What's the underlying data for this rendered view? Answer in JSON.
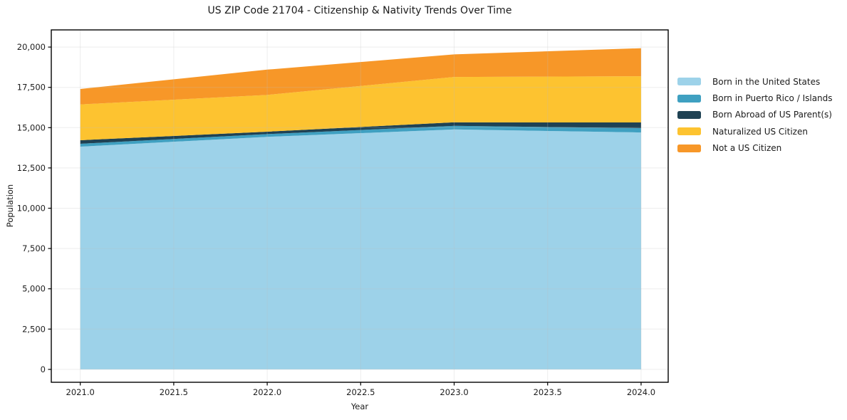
{
  "chart_data": {
    "type": "area",
    "stacked": true,
    "title": "US ZIP Code 21704 - Citizenship & Nativity Trends Over Time",
    "xlabel": "Year",
    "ylabel": "Population",
    "x": [
      2021,
      2022,
      2023,
      2024
    ],
    "series": [
      {
        "name": "Born in the United States",
        "color": "#9DD2E9",
        "values": [
          13820,
          14430,
          14890,
          14700
        ]
      },
      {
        "name": "Born in Puerto Rico / Islands",
        "color": "#3FA0C1",
        "values": [
          180,
          170,
          220,
          270
        ]
      },
      {
        "name": "Born Abroad of US Parent(s)",
        "color": "#1F4254",
        "values": [
          220,
          150,
          220,
          350
        ]
      },
      {
        "name": "Naturalized US Citizen",
        "color": "#FDC330",
        "values": [
          2220,
          2280,
          2815,
          2870
        ]
      },
      {
        "name": "Not a US Citizen",
        "color": "#F79728",
        "values": [
          960,
          1570,
          1400,
          1740
        ]
      }
    ],
    "xlim": [
      2020.845,
      2024.145
    ],
    "ylim": [
      -800,
      21065
    ],
    "xtick_values": [
      2021.0,
      2021.5,
      2022.0,
      2022.5,
      2023.0,
      2023.5,
      2024.0
    ],
    "xtick_labels": [
      "2021.0",
      "2021.5",
      "2022.0",
      "2022.5",
      "2023.0",
      "2023.5",
      "2024.0"
    ],
    "ytick_values": [
      0,
      2500,
      5000,
      7500,
      10000,
      12500,
      15000,
      17500,
      20000
    ],
    "ytick_labels": [
      "0",
      "2,500",
      "5,000",
      "7,500",
      "10,000",
      "12,500",
      "15,000",
      "17,500",
      "20,000"
    ],
    "grid": true,
    "legend_position": "right-outside",
    "colors": {
      "axis": "#000000",
      "grid": "#bdbdbd",
      "tick_text": "#1c1c1c",
      "background": "#ffffff"
    }
  }
}
